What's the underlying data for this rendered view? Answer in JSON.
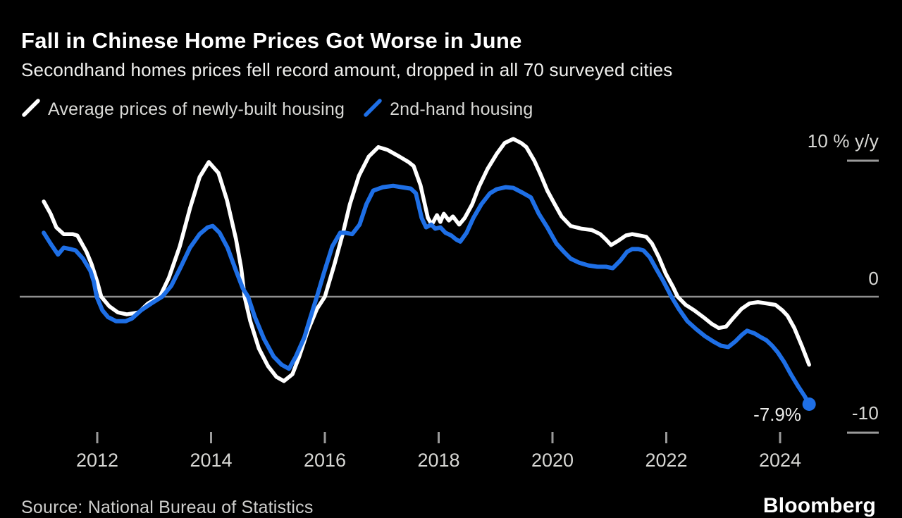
{
  "title": "Fall in Chinese Home Prices Got Worse in June",
  "subtitle": "Secondhand homes prices fell record amount, dropped in all 70 surveyed cities",
  "legend": [
    {
      "label": "Average prices of newly-built housing",
      "color": "#ffffff"
    },
    {
      "label": "2nd-hand housing",
      "color": "#1e6fe6"
    }
  ],
  "annotation": {
    "label": "-7.9%"
  },
  "source": "Source: National Bureau of Statistics",
  "brand": "Bloomberg",
  "colors": {
    "background": "#000000",
    "accent_blue": "#1e6fe6",
    "line_white": "#ffffff",
    "grid_gray": "#8f8f8f",
    "text_light": "#d9d9d6"
  },
  "chart_data": {
    "type": "line",
    "title": "Fall in Chinese Home Prices Got Worse in June",
    "subtitle": "Secondhand homes prices fell record amount, dropped in all 70 surveyed cities",
    "unit": "% y/y",
    "grid": "zero-line-only",
    "legend_position": "top-left",
    "y_axis": {
      "labels": {
        "top": "10 % y/y",
        "zero": "0",
        "bottom": "-10"
      },
      "tick_values": [
        10,
        0,
        -10
      ],
      "range": [
        -12,
        12
      ]
    },
    "x_axis": {
      "ticks": [
        2012,
        2014,
        2016,
        2018,
        2020,
        2022,
        2024
      ],
      "range": [
        2011.05,
        2024.55
      ]
    },
    "series": [
      {
        "name": "Average prices of newly-built housing",
        "color": "#ffffff",
        "end_dot": false,
        "points": [
          [
            2011.06,
            7.0
          ],
          [
            2011.18,
            6.1
          ],
          [
            2011.28,
            5.1
          ],
          [
            2011.41,
            4.6
          ],
          [
            2011.57,
            4.6
          ],
          [
            2011.65,
            4.5
          ],
          [
            2011.81,
            3.3
          ],
          [
            2011.9,
            2.4
          ],
          [
            2012.0,
            1.1
          ],
          [
            2012.07,
            0.0
          ],
          [
            2012.21,
            -0.7
          ],
          [
            2012.36,
            -1.15
          ],
          [
            2012.52,
            -1.3
          ],
          [
            2012.73,
            -1.15
          ],
          [
            2012.89,
            -0.5
          ],
          [
            2013.1,
            0.0
          ],
          [
            2013.26,
            1.4
          ],
          [
            2013.45,
            3.7
          ],
          [
            2013.63,
            6.5
          ],
          [
            2013.8,
            8.8
          ],
          [
            2013.96,
            9.9
          ],
          [
            2014.13,
            9.1
          ],
          [
            2014.28,
            7.1
          ],
          [
            2014.44,
            4.2
          ],
          [
            2014.53,
            2.1
          ],
          [
            2014.59,
            0.0
          ],
          [
            2014.69,
            -1.8
          ],
          [
            2014.84,
            -3.8
          ],
          [
            2015.0,
            -5.1
          ],
          [
            2015.15,
            -5.9
          ],
          [
            2015.28,
            -6.2
          ],
          [
            2015.43,
            -5.7
          ],
          [
            2015.55,
            -4.4
          ],
          [
            2015.7,
            -2.5
          ],
          [
            2015.86,
            -0.9
          ],
          [
            2016.0,
            0.0
          ],
          [
            2016.17,
            2.4
          ],
          [
            2016.32,
            4.7
          ],
          [
            2016.44,
            6.8
          ],
          [
            2016.6,
            8.9
          ],
          [
            2016.77,
            10.3
          ],
          [
            2016.94,
            11.0
          ],
          [
            2017.1,
            10.8
          ],
          [
            2017.31,
            10.3
          ],
          [
            2017.47,
            9.9
          ],
          [
            2017.56,
            9.6
          ],
          [
            2017.68,
            8.2
          ],
          [
            2017.81,
            5.8
          ],
          [
            2017.88,
            5.3
          ],
          [
            2017.97,
            6.0
          ],
          [
            2018.03,
            5.5
          ],
          [
            2018.09,
            6.1
          ],
          [
            2018.18,
            5.6
          ],
          [
            2018.25,
            5.9
          ],
          [
            2018.36,
            5.3
          ],
          [
            2018.46,
            5.8
          ],
          [
            2018.59,
            6.8
          ],
          [
            2018.71,
            8.1
          ],
          [
            2018.86,
            9.4
          ],
          [
            2019.02,
            10.5
          ],
          [
            2019.16,
            11.3
          ],
          [
            2019.31,
            11.6
          ],
          [
            2019.45,
            11.3
          ],
          [
            2019.54,
            11.0
          ],
          [
            2019.68,
            10.0
          ],
          [
            2019.79,
            9.0
          ],
          [
            2019.91,
            7.8
          ],
          [
            2020.04,
            6.8
          ],
          [
            2020.16,
            5.9
          ],
          [
            2020.32,
            5.2
          ],
          [
            2020.51,
            5.0
          ],
          [
            2020.69,
            4.9
          ],
          [
            2020.84,
            4.6
          ],
          [
            2020.94,
            4.2
          ],
          [
            2021.03,
            3.8
          ],
          [
            2021.15,
            4.1
          ],
          [
            2021.29,
            4.5
          ],
          [
            2021.4,
            4.6
          ],
          [
            2021.53,
            4.5
          ],
          [
            2021.65,
            4.4
          ],
          [
            2021.75,
            3.9
          ],
          [
            2021.87,
            2.9
          ],
          [
            2021.99,
            1.7
          ],
          [
            2022.12,
            0.7
          ],
          [
            2022.2,
            0.0
          ],
          [
            2022.34,
            -0.6
          ],
          [
            2022.49,
            -1.0
          ],
          [
            2022.65,
            -1.5
          ],
          [
            2022.8,
            -2.0
          ],
          [
            2022.92,
            -2.3
          ],
          [
            2023.05,
            -2.2
          ],
          [
            2023.17,
            -1.6
          ],
          [
            2023.32,
            -0.9
          ],
          [
            2023.46,
            -0.5
          ],
          [
            2023.61,
            -0.4
          ],
          [
            2023.77,
            -0.5
          ],
          [
            2023.92,
            -0.6
          ],
          [
            2024.04,
            -1.0
          ],
          [
            2024.13,
            -1.4
          ],
          [
            2024.25,
            -2.3
          ],
          [
            2024.38,
            -3.6
          ],
          [
            2024.51,
            -5.0
          ]
        ]
      },
      {
        "name": "2nd-hand housing",
        "color": "#1e6fe6",
        "end_dot": true,
        "end_label": "-7.9%",
        "points": [
          [
            2011.06,
            4.7
          ],
          [
            2011.18,
            3.9
          ],
          [
            2011.31,
            3.1
          ],
          [
            2011.41,
            3.6
          ],
          [
            2011.53,
            3.5
          ],
          [
            2011.62,
            3.4
          ],
          [
            2011.75,
            2.8
          ],
          [
            2011.88,
            1.9
          ],
          [
            2011.94,
            1.1
          ],
          [
            2011.99,
            0.0
          ],
          [
            2012.09,
            -1.0
          ],
          [
            2012.19,
            -1.5
          ],
          [
            2012.33,
            -1.8
          ],
          [
            2012.5,
            -1.8
          ],
          [
            2012.61,
            -1.6
          ],
          [
            2012.77,
            -1.0
          ],
          [
            2012.95,
            -0.5
          ],
          [
            2013.14,
            0.0
          ],
          [
            2013.3,
            0.8
          ],
          [
            2013.47,
            2.2
          ],
          [
            2013.63,
            3.6
          ],
          [
            2013.8,
            4.6
          ],
          [
            2013.94,
            5.1
          ],
          [
            2014.03,
            5.2
          ],
          [
            2014.15,
            4.7
          ],
          [
            2014.29,
            3.6
          ],
          [
            2014.44,
            1.9
          ],
          [
            2014.56,
            0.6
          ],
          [
            2014.65,
            0.0
          ],
          [
            2014.77,
            -1.5
          ],
          [
            2014.93,
            -3.1
          ],
          [
            2015.1,
            -4.4
          ],
          [
            2015.24,
            -5.0
          ],
          [
            2015.37,
            -5.3
          ],
          [
            2015.49,
            -4.4
          ],
          [
            2015.64,
            -3.0
          ],
          [
            2015.74,
            -1.6
          ],
          [
            2015.86,
            0.0
          ],
          [
            2015.98,
            1.7
          ],
          [
            2016.13,
            3.7
          ],
          [
            2016.27,
            4.7
          ],
          [
            2016.36,
            4.7
          ],
          [
            2016.48,
            4.6
          ],
          [
            2016.61,
            5.3
          ],
          [
            2016.73,
            6.8
          ],
          [
            2016.85,
            7.8
          ],
          [
            2017.02,
            8.05
          ],
          [
            2017.2,
            8.15
          ],
          [
            2017.35,
            8.05
          ],
          [
            2017.51,
            7.95
          ],
          [
            2017.6,
            7.6
          ],
          [
            2017.7,
            5.8
          ],
          [
            2017.78,
            5.1
          ],
          [
            2017.87,
            5.3
          ],
          [
            2017.94,
            5.0
          ],
          [
            2018.03,
            5.1
          ],
          [
            2018.12,
            4.7
          ],
          [
            2018.22,
            4.5
          ],
          [
            2018.31,
            4.2
          ],
          [
            2018.38,
            4.05
          ],
          [
            2018.49,
            4.7
          ],
          [
            2018.61,
            5.8
          ],
          [
            2018.75,
            6.8
          ],
          [
            2018.9,
            7.6
          ],
          [
            2019.02,
            7.9
          ],
          [
            2019.18,
            8.05
          ],
          [
            2019.31,
            8.0
          ],
          [
            2019.45,
            7.7
          ],
          [
            2019.62,
            7.3
          ],
          [
            2019.76,
            6.1
          ],
          [
            2019.91,
            5.1
          ],
          [
            2020.07,
            3.9
          ],
          [
            2020.2,
            3.3
          ],
          [
            2020.32,
            2.8
          ],
          [
            2020.47,
            2.5
          ],
          [
            2020.63,
            2.3
          ],
          [
            2020.79,
            2.2
          ],
          [
            2020.94,
            2.2
          ],
          [
            2021.06,
            2.1
          ],
          [
            2021.19,
            2.65
          ],
          [
            2021.31,
            3.3
          ],
          [
            2021.4,
            3.5
          ],
          [
            2021.51,
            3.5
          ],
          [
            2021.6,
            3.4
          ],
          [
            2021.71,
            2.9
          ],
          [
            2021.83,
            2.0
          ],
          [
            2021.94,
            1.2
          ],
          [
            2022.09,
            0.0
          ],
          [
            2022.22,
            -0.9
          ],
          [
            2022.37,
            -1.8
          ],
          [
            2022.53,
            -2.4
          ],
          [
            2022.68,
            -2.9
          ],
          [
            2022.83,
            -3.3
          ],
          [
            2022.96,
            -3.6
          ],
          [
            2023.09,
            -3.7
          ],
          [
            2023.21,
            -3.3
          ],
          [
            2023.33,
            -2.8
          ],
          [
            2023.42,
            -2.5
          ],
          [
            2023.55,
            -2.7
          ],
          [
            2023.67,
            -3.0
          ],
          [
            2023.76,
            -3.2
          ],
          [
            2023.86,
            -3.6
          ],
          [
            2023.96,
            -4.1
          ],
          [
            2024.07,
            -4.8
          ],
          [
            2024.19,
            -5.7
          ],
          [
            2024.32,
            -6.6
          ],
          [
            2024.43,
            -7.3
          ],
          [
            2024.51,
            -7.9
          ]
        ]
      }
    ]
  }
}
